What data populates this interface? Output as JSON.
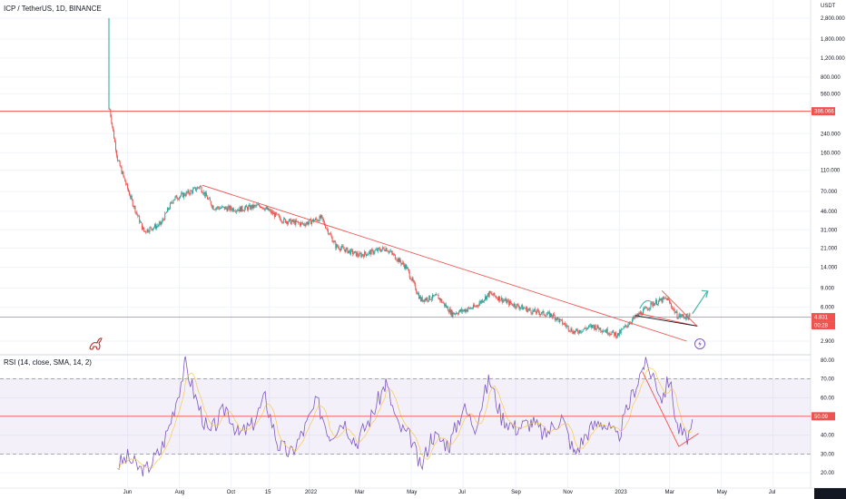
{
  "header": {
    "title": "ICP / TetherUS, 1D, BINANCE",
    "unit": "USDT",
    "rsi_title": "RSI (14, close, SMA, 14, 2)"
  },
  "badges": {
    "resistance": "386.066",
    "price": "4.831",
    "countdown": "00:28",
    "rsi": "50.09"
  },
  "chart_data": [
    {
      "type": "line",
      "title": "ICP / TetherUS, 1D, BINANCE",
      "scale": "log",
      "yunit": "USDT",
      "yticks": [
        "2,800.000",
        "1,800.000",
        "1,200.000",
        "800.000",
        "560.000",
        "240.000",
        "160.000",
        "110.000",
        "70.000",
        "46.000",
        "31.000",
        "21.000",
        "14.000",
        "9.000",
        "6.000",
        "2.900"
      ],
      "xticks": [
        "Jun",
        "Aug",
        "Oct",
        "15",
        "2022",
        "Mar",
        "May",
        "Jul",
        "Sep",
        "Nov",
        "2023",
        "Mar",
        "May",
        "Jul"
      ],
      "series": [
        {
          "values": [
            {
              "x": "2021-05-10",
              "y": 2800
            },
            {
              "x": "2021-05-11",
              "y": 400
            },
            {
              "x": "2021-05-20",
              "y": 140
            },
            {
              "x": "2021-06-05",
              "y": 60
            },
            {
              "x": "2021-06-20",
              "y": 30
            },
            {
              "x": "2021-07-10",
              "y": 35
            },
            {
              "x": "2021-07-25",
              "y": 60
            },
            {
              "x": "2021-08-15",
              "y": 70
            },
            {
              "x": "2021-08-25",
              "y": 78
            },
            {
              "x": "2021-09-10",
              "y": 50
            },
            {
              "x": "2021-10-10",
              "y": 48
            },
            {
              "x": "2021-11-05",
              "y": 52
            },
            {
              "x": "2021-12-01",
              "y": 38
            },
            {
              "x": "2021-12-25",
              "y": 35
            },
            {
              "x": "2022-01-15",
              "y": 40
            },
            {
              "x": "2022-02-01",
              "y": 22
            },
            {
              "x": "2022-03-01",
              "y": 18
            },
            {
              "x": "2022-04-01",
              "y": 21
            },
            {
              "x": "2022-04-25",
              "y": 14
            },
            {
              "x": "2022-05-12",
              "y": 7
            },
            {
              "x": "2022-06-01",
              "y": 7.5
            },
            {
              "x": "2022-06-18",
              "y": 5.2
            },
            {
              "x": "2022-07-15",
              "y": 6
            },
            {
              "x": "2022-08-01",
              "y": 8
            },
            {
              "x": "2022-08-25",
              "y": 6.5
            },
            {
              "x": "2022-09-20",
              "y": 5.5
            },
            {
              "x": "2022-10-15",
              "y": 5
            },
            {
              "x": "2022-11-09",
              "y": 3.5
            },
            {
              "x": "2022-12-01",
              "y": 4
            },
            {
              "x": "2022-12-30",
              "y": 3.3
            },
            {
              "x": "2023-01-15",
              "y": 4.5
            },
            {
              "x": "2023-02-10",
              "y": 6.5
            },
            {
              "x": "2023-02-26",
              "y": 7.2
            },
            {
              "x": "2023-03-10",
              "y": 5
            },
            {
              "x": "2023-03-25",
              "y": 4.831
            }
          ]
        }
      ],
      "annotations": {
        "resistance": 386.066,
        "support": 4.831,
        "trendline": [
          {
            "x": "2021-08-28",
            "y": 80
          },
          {
            "x": "2023-04-01",
            "y": 2.9
          }
        ]
      }
    },
    {
      "type": "line",
      "title": "RSI (14, close, SMA, 14, 2)",
      "yticks": [
        "80.00",
        "70.00",
        "60.00",
        "50.00",
        "40.00",
        "30.00",
        "20.00"
      ],
      "ylim": [
        15,
        85
      ],
      "band": [
        30,
        70
      ],
      "level": 50.09,
      "series": [
        {
          "values": [
            {
              "x": "2021-05-20",
              "y": 24
            },
            {
              "x": "2021-06-01",
              "y": 28
            },
            {
              "x": "2021-06-20",
              "y": 20
            },
            {
              "x": "2021-07-10",
              "y": 32
            },
            {
              "x": "2021-07-20",
              "y": 45
            },
            {
              "x": "2021-08-01",
              "y": 65
            },
            {
              "x": "2021-08-08",
              "y": 78
            },
            {
              "x": "2021-08-20",
              "y": 60
            },
            {
              "x": "2021-09-05",
              "y": 40
            },
            {
              "x": "2021-09-25",
              "y": 55
            },
            {
              "x": "2021-10-10",
              "y": 40
            },
            {
              "x": "2021-10-25",
              "y": 45
            },
            {
              "x": "2021-11-10",
              "y": 60
            },
            {
              "x": "2021-11-25",
              "y": 35
            },
            {
              "x": "2021-12-10",
              "y": 30
            },
            {
              "x": "2021-12-25",
              "y": 42
            },
            {
              "x": "2022-01-10",
              "y": 58
            },
            {
              "x": "2022-01-25",
              "y": 40
            },
            {
              "x": "2022-02-10",
              "y": 48
            },
            {
              "x": "2022-02-25",
              "y": 36
            },
            {
              "x": "2022-03-15",
              "y": 50
            },
            {
              "x": "2022-04-01",
              "y": 68
            },
            {
              "x": "2022-04-15",
              "y": 45
            },
            {
              "x": "2022-05-01",
              "y": 38
            },
            {
              "x": "2022-05-12",
              "y": 22
            },
            {
              "x": "2022-05-25",
              "y": 40
            },
            {
              "x": "2022-06-15",
              "y": 35
            },
            {
              "x": "2022-07-01",
              "y": 55
            },
            {
              "x": "2022-07-15",
              "y": 45
            },
            {
              "x": "2022-08-01",
              "y": 70
            },
            {
              "x": "2022-08-15",
              "y": 50
            },
            {
              "x": "2022-09-01",
              "y": 44
            },
            {
              "x": "2022-09-20",
              "y": 47
            },
            {
              "x": "2022-10-05",
              "y": 40
            },
            {
              "x": "2022-10-25",
              "y": 50
            },
            {
              "x": "2022-11-09",
              "y": 30
            },
            {
              "x": "2022-11-25",
              "y": 42
            },
            {
              "x": "2022-12-10",
              "y": 48
            },
            {
              "x": "2022-12-30",
              "y": 38
            },
            {
              "x": "2023-01-15",
              "y": 60
            },
            {
              "x": "2023-01-30",
              "y": 78
            },
            {
              "x": "2023-02-10",
              "y": 72
            },
            {
              "x": "2023-02-20",
              "y": 60
            },
            {
              "x": "2023-03-01",
              "y": 70
            },
            {
              "x": "2023-03-10",
              "y": 45
            },
            {
              "x": "2023-03-20",
              "y": 38
            },
            {
              "x": "2023-03-30",
              "y": 45
            }
          ]
        }
      ]
    }
  ]
}
